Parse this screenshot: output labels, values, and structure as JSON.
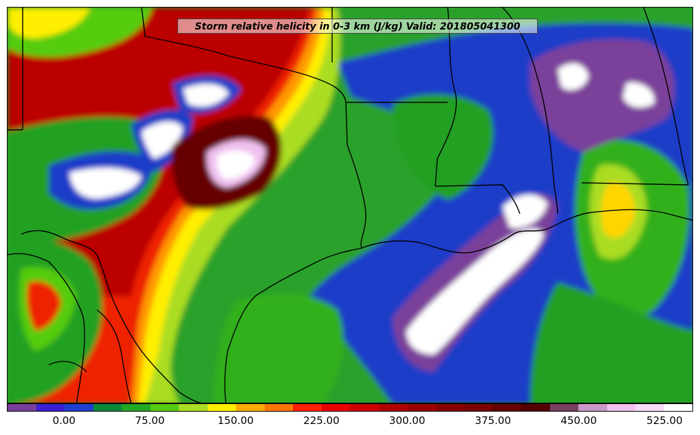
{
  "title": "Storm relative helicity in 0-3 km (J/kg) Valid: 201805041300",
  "colorbar": {
    "colors": [
      "#7a3f9a",
      "#3a1fd6",
      "#1f3fd0",
      "#0b8a3a",
      "#22a822",
      "#55cc11",
      "#aadd22",
      "#ffee00",
      "#ffaa00",
      "#ff7700",
      "#ff2200",
      "#e60000",
      "#cc0000",
      "#b00000",
      "#990000",
      "#880000",
      "#770000",
      "#660000",
      "#550000",
      "#7a4060",
      "#c898c8",
      "#f0c0f0",
      "#f8dcf8",
      "#ffffff"
    ],
    "tick_labels": [
      "0.00",
      "75.00",
      "150.00",
      "225.00",
      "300.00",
      "375.00",
      "450.00",
      "525.00"
    ]
  },
  "map": {
    "background_color": "#2a9a2a",
    "border_color": "#000000"
  }
}
